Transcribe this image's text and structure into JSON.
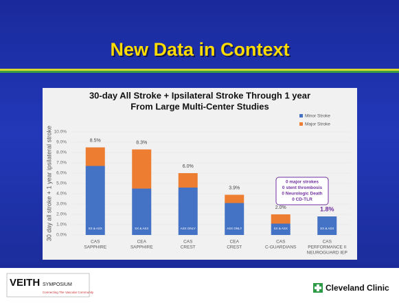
{
  "slide": {
    "title": "New Data in Context",
    "logo_left": "VEITH",
    "logo_left_sub": "SYMPOSIUM",
    "logo_left_tagline": "Connecting The Vascular Community",
    "logo_right": "Cleveland Clinic"
  },
  "chart_data": {
    "type": "bar",
    "stacked": true,
    "title": [
      "30-day All Stroke + Ipsilateral Stroke Through 1 year",
      "From Large Multi-Center Studies"
    ],
    "y_label": "30 day all stroke + 1 year ipsilateral stroke",
    "categories": [
      [
        "CAS",
        "SAPPHIRE"
      ],
      [
        "CEA",
        "SAPPHIRE"
      ],
      [
        "CAS",
        "CREST"
      ],
      [
        "CEA",
        "CREST"
      ],
      [
        "CAS",
        "C-GUARDIANS"
      ],
      [
        "CAS",
        "PERFORMANCE II",
        "NEUROGUARD IEP"
      ]
    ],
    "series": [
      {
        "name": "Minor Stroke",
        "color": "#4472c4",
        "values": [
          6.7,
          4.5,
          4.6,
          3.1,
          1.1,
          1.8
        ]
      },
      {
        "name": "Major Stroke",
        "color": "#ed7d31",
        "values": [
          1.8,
          3.8,
          1.4,
          0.8,
          0.9,
          0
        ]
      }
    ],
    "totals": [
      8.5,
      8.3,
      6.0,
      3.9,
      2.0,
      1.8
    ],
    "total_labels": [
      "8.5%",
      "8.3%",
      "6.0%",
      "3.9%",
      "2.0%",
      "1.8%"
    ],
    "bar_labels": [
      "SX & ASX",
      "SX & ASX",
      "ASX ONLY",
      "ASX ONLY",
      "SX & ASX",
      "SX & ASX"
    ],
    "annotation": [
      "0 major strokes",
      "0 stent thrombosis",
      "0 Neurologic Death",
      "0 CD-TLR"
    ],
    "ylim": [
      0,
      10
    ],
    "yticks": [
      {
        "value": 0,
        "label": "0.0%"
      },
      {
        "value": 1,
        "label": "1.0%"
      },
      {
        "value": 2,
        "label": "2.0%"
      },
      {
        "value": 3,
        "label": "3.0%"
      },
      {
        "value": 4,
        "label": "4.0%"
      },
      {
        "value": 5,
        "label": "5.0%"
      },
      {
        "value": 6,
        "label": "6.0%"
      },
      {
        "value": 7,
        "label": "7.0%"
      },
      {
        "value": 8,
        "label": "8.0%"
      },
      {
        "value": 9,
        "label": "9.0%"
      },
      {
        "value": 10,
        "label": "10.0%"
      }
    ],
    "legend": "top-right"
  }
}
